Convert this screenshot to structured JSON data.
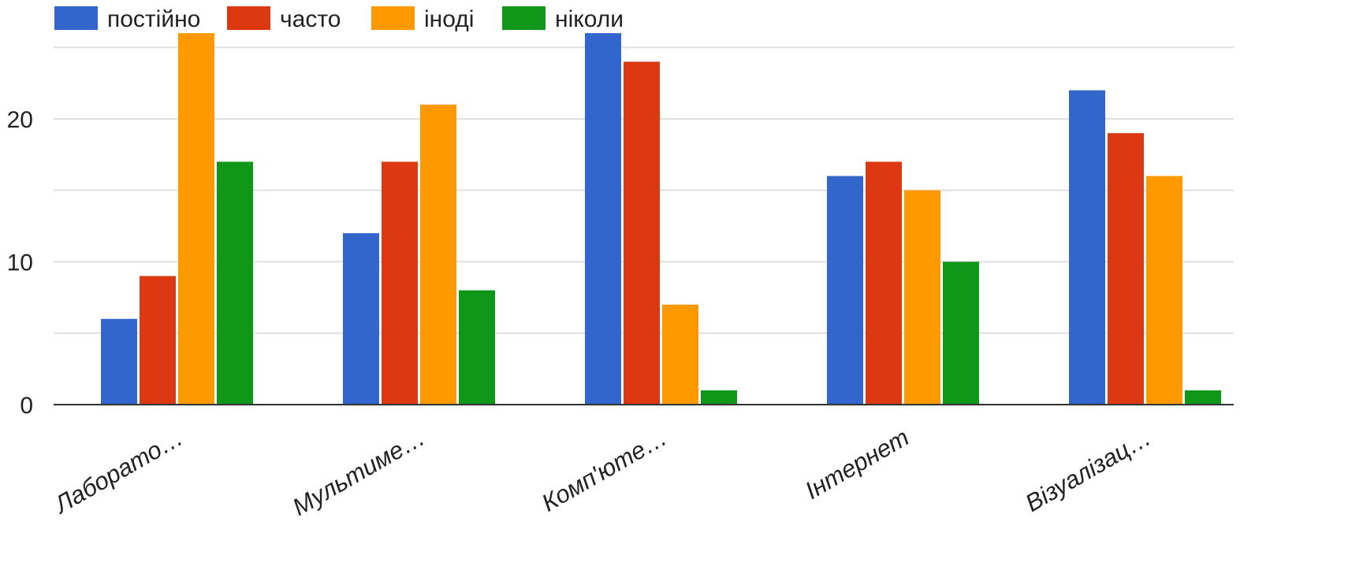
{
  "chart_data": {
    "type": "bar",
    "title": "",
    "xlabel": "",
    "ylabel": "",
    "categories": [
      "Лаборато…",
      "Мультиме…",
      "Комп'юте…",
      "Інтернет",
      "Візуалізац…"
    ],
    "series": [
      {
        "name": "постійно",
        "color": "#3366cc",
        "values": [
          6,
          12,
          26,
          16,
          22
        ]
      },
      {
        "name": "часто",
        "color": "#dc3912",
        "values": [
          9,
          17,
          24,
          17,
          19
        ]
      },
      {
        "name": "іноді",
        "color": "#ff9900",
        "values": [
          26,
          21,
          7,
          15,
          16
        ]
      },
      {
        "name": "ніколи",
        "color": "#109618",
        "values": [
          17,
          8,
          1,
          10,
          1
        ]
      }
    ],
    "ylim": [
      0,
      26
    ],
    "yticks": [
      "0",
      "10",
      "20"
    ],
    "grid": true,
    "legend_position": "top-left"
  }
}
